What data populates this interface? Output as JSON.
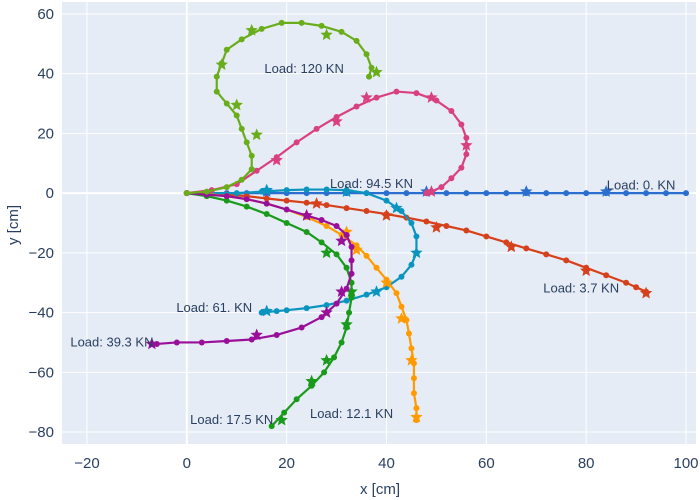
{
  "chart_data": {
    "type": "line",
    "xlabel": "x [cm]",
    "ylabel": "y [cm]",
    "xlim": [
      -25,
      102
    ],
    "ylim": [
      -84,
      64
    ],
    "x_ticks": [
      -20,
      0,
      20,
      40,
      60,
      80,
      100
    ],
    "y_ticks": [
      -80,
      -60,
      -40,
      -20,
      0,
      20,
      40,
      60
    ],
    "grid": true,
    "legend": "none",
    "background": "#e5ecf6",
    "series": [
      {
        "name": "Load: 0. KN",
        "color": "#2a6fd0",
        "points": [
          [
            0,
            0
          ],
          [
            4,
            0
          ],
          [
            8,
            0
          ],
          [
            12,
            0
          ],
          [
            16,
            0
          ],
          [
            20,
            0
          ],
          [
            24,
            0
          ],
          [
            28,
            0
          ],
          [
            32,
            0
          ],
          [
            36,
            0
          ],
          [
            40,
            0
          ],
          [
            44,
            0
          ],
          [
            48,
            0
          ],
          [
            52,
            0
          ],
          [
            56,
            0
          ],
          [
            60,
            0
          ],
          [
            64,
            0
          ],
          [
            68,
            0
          ],
          [
            72,
            0
          ],
          [
            76,
            0
          ],
          [
            80,
            0
          ],
          [
            84,
            0
          ],
          [
            88,
            0
          ],
          [
            92,
            0
          ],
          [
            96,
            0
          ],
          [
            100,
            0
          ]
        ],
        "stars": [
          [
            16,
            0.5
          ],
          [
            32,
            0.5
          ],
          [
            48,
            0.5
          ],
          [
            68,
            0.5
          ],
          [
            84,
            0.5
          ]
        ]
      },
      {
        "name": "Load: 3.7 KN",
        "color": "#d6411b",
        "points": [
          [
            0,
            0
          ],
          [
            4,
            -0.2
          ],
          [
            8,
            -0.5
          ],
          [
            12,
            -1
          ],
          [
            16,
            -1.8
          ],
          [
            20,
            -2.5
          ],
          [
            24,
            -3.2
          ],
          [
            28,
            -4
          ],
          [
            32,
            -5
          ],
          [
            36,
            -6
          ],
          [
            40,
            -7
          ],
          [
            44,
            -8.2
          ],
          [
            48,
            -9.5
          ],
          [
            52,
            -11
          ],
          [
            56,
            -12.5
          ],
          [
            60,
            -14.5
          ],
          [
            64,
            -16.5
          ],
          [
            68,
            -18.5
          ],
          [
            72,
            -20.5
          ],
          [
            76,
            -22.5
          ],
          [
            80,
            -25
          ],
          [
            84,
            -27.5
          ],
          [
            88,
            -30
          ],
          [
            90,
            -31.5
          ],
          [
            92,
            -33
          ]
        ],
        "stars": [
          [
            26,
            -3.5
          ],
          [
            40,
            -7.5
          ],
          [
            50,
            -11.5
          ],
          [
            65,
            -18
          ],
          [
            80,
            -26
          ],
          [
            92,
            -33.5
          ]
        ]
      },
      {
        "name": "Load: 94.5 KN",
        "color": "#0b94bf",
        "points": [
          [
            0,
            0
          ],
          [
            5,
            0
          ],
          [
            10,
            0
          ],
          [
            15,
            0.5
          ],
          [
            20,
            1
          ],
          [
            24,
            1.2
          ],
          [
            28,
            1.2
          ],
          [
            32,
            1
          ],
          [
            36,
            0
          ],
          [
            40,
            -2.5
          ],
          [
            43,
            -6
          ],
          [
            45,
            -10
          ],
          [
            46,
            -14.5
          ],
          [
            46,
            -20
          ],
          [
            45,
            -24
          ],
          [
            43,
            -28
          ],
          [
            40,
            -31.5
          ],
          [
            36,
            -34
          ],
          [
            32,
            -36
          ],
          [
            28,
            -37.5
          ],
          [
            24,
            -38.5
          ],
          [
            20,
            -39.2
          ],
          [
            18,
            -39.5
          ],
          [
            15,
            -40
          ]
        ],
        "stars": [
          [
            16,
            1
          ],
          [
            32,
            0.5
          ],
          [
            42,
            -5
          ],
          [
            46,
            -20
          ],
          [
            38,
            -33
          ],
          [
            16,
            -39.5
          ]
        ]
      },
      {
        "name": "Load: 12.1 KN",
        "color": "#ff9b00",
        "points": [
          [
            0,
            0
          ],
          [
            4,
            -0.3
          ],
          [
            8,
            -1
          ],
          [
            12,
            -2
          ],
          [
            16,
            -3.5
          ],
          [
            20,
            -5.5
          ],
          [
            24,
            -8
          ],
          [
            28,
            -11
          ],
          [
            31,
            -14
          ],
          [
            34,
            -17.5
          ],
          [
            36,
            -21
          ],
          [
            38,
            -25
          ],
          [
            40,
            -29
          ],
          [
            42,
            -33.5
          ],
          [
            43,
            -38
          ],
          [
            44,
            -42.5
          ],
          [
            44.5,
            -47
          ],
          [
            45,
            -52
          ],
          [
            45.5,
            -57
          ],
          [
            45.5,
            -62
          ],
          [
            45.5,
            -67
          ],
          [
            46,
            -72
          ],
          [
            46,
            -76
          ]
        ],
        "stars": [
          [
            24,
            -7.5
          ],
          [
            32,
            -13
          ],
          [
            34,
            -19
          ],
          [
            40,
            -30
          ],
          [
            43,
            -42
          ],
          [
            45,
            -56
          ],
          [
            46,
            -75
          ]
        ]
      },
      {
        "name": "Load: 17.5 KN",
        "color": "#1a9a1a",
        "points": [
          [
            0,
            0
          ],
          [
            4,
            -1
          ],
          [
            8,
            -2.5
          ],
          [
            12,
            -4.5
          ],
          [
            16,
            -7
          ],
          [
            20,
            -10
          ],
          [
            24,
            -13
          ],
          [
            27,
            -16.5
          ],
          [
            30,
            -20.5
          ],
          [
            32,
            -25
          ],
          [
            33,
            -30
          ],
          [
            33,
            -35
          ],
          [
            32.5,
            -40
          ],
          [
            32,
            -45
          ],
          [
            31,
            -50
          ],
          [
            29.5,
            -55
          ],
          [
            27.5,
            -60
          ],
          [
            25,
            -64.5
          ],
          [
            22,
            -69
          ],
          [
            19.5,
            -73.5
          ],
          [
            17,
            -78
          ]
        ],
        "stars": [
          [
            28,
            -20
          ],
          [
            33,
            -33
          ],
          [
            32,
            -44
          ],
          [
            28,
            -56
          ],
          [
            25,
            -63
          ],
          [
            19,
            -76
          ]
        ]
      },
      {
        "name": "Load: 39.3 KN",
        "color": "#9a0f9a",
        "points": [
          [
            0,
            0
          ],
          [
            4,
            -0.5
          ],
          [
            8,
            -1
          ],
          [
            12,
            -2
          ],
          [
            16,
            -3.5
          ],
          [
            20,
            -5.5
          ],
          [
            24,
            -7.5
          ],
          [
            27,
            -9
          ],
          [
            30,
            -11
          ],
          [
            32,
            -14
          ],
          [
            33,
            -18
          ],
          [
            33,
            -22.5
          ],
          [
            33,
            -27
          ],
          [
            32,
            -32
          ],
          [
            30,
            -37
          ],
          [
            27,
            -41.5
          ],
          [
            23,
            -45
          ],
          [
            18,
            -47.5
          ],
          [
            13,
            -49
          ],
          [
            8,
            -49.5
          ],
          [
            3,
            -50
          ],
          [
            -2,
            -50
          ],
          [
            -6,
            -50.5
          ],
          [
            -7,
            -50.5
          ]
        ],
        "stars": [
          [
            24,
            -7.5
          ],
          [
            31,
            -16
          ],
          [
            31,
            -33
          ],
          [
            28,
            -40
          ],
          [
            14,
            -47.5
          ],
          [
            -7,
            -50.5
          ]
        ]
      },
      {
        "name": "Load: 61. KN",
        "color": "#d94080",
        "points": [
          [
            0,
            0
          ],
          [
            5,
            1
          ],
          [
            10,
            3
          ],
          [
            14,
            7.5
          ],
          [
            18,
            12
          ],
          [
            22,
            17
          ],
          [
            26,
            21.5
          ],
          [
            30,
            25.5
          ],
          [
            34,
            29
          ],
          [
            38,
            32
          ],
          [
            42,
            34
          ],
          [
            46,
            33.5
          ],
          [
            50,
            31
          ],
          [
            53,
            27.5
          ],
          [
            55,
            23
          ],
          [
            56,
            18.5
          ],
          [
            56,
            13
          ],
          [
            55,
            8.5
          ],
          [
            53,
            5
          ],
          [
            51,
            2
          ],
          [
            49,
            0.5
          ],
          [
            48,
            0
          ]
        ],
        "stars": [
          [
            18,
            11
          ],
          [
            30,
            24
          ],
          [
            36,
            32
          ],
          [
            49,
            32
          ],
          [
            56,
            16
          ],
          [
            49,
            0.5
          ]
        ]
      },
      {
        "name": "Load: 120 KN",
        "color": "#6aad1a",
        "points": [
          [
            0,
            0
          ],
          [
            4,
            0.5
          ],
          [
            8,
            2
          ],
          [
            11,
            4.5
          ],
          [
            13,
            8
          ],
          [
            13,
            12.5
          ],
          [
            12,
            17
          ],
          [
            11,
            21.5
          ],
          [
            10,
            26
          ],
          [
            8,
            30
          ],
          [
            6,
            34
          ],
          [
            6,
            39
          ],
          [
            7,
            43.5
          ],
          [
            8,
            48
          ],
          [
            11,
            51.5
          ],
          [
            15,
            55
          ],
          [
            19,
            57
          ],
          [
            23,
            57
          ],
          [
            27,
            56
          ],
          [
            31,
            54
          ],
          [
            34,
            51
          ],
          [
            36,
            46.5
          ],
          [
            37,
            42
          ],
          [
            36.5,
            39
          ]
        ],
        "stars": [
          [
            14,
            19.5
          ],
          [
            10,
            29.5
          ],
          [
            7,
            43
          ],
          [
            13,
            54.5
          ],
          [
            28,
            53
          ],
          [
            38,
            40.5
          ]
        ]
      }
    ],
    "annotations": [
      {
        "text": "Load: 0. KN",
        "x": 91,
        "y": 2.5
      },
      {
        "text": "Load: 3.7 KN",
        "x": 79,
        "y": -32
      },
      {
        "text": "Load: 94.5 KN",
        "x": 37,
        "y": 3
      },
      {
        "text": "Load: 12.1 KN",
        "x": 33,
        "y": -74
      },
      {
        "text": "Load: 17.5 KN",
        "x": 9,
        "y": -76
      },
      {
        "text": "Load: 39.3 KN",
        "x": -15,
        "y": -50
      },
      {
        "text": "Load: 61. KN",
        "x": 5.5,
        "y": -38.5
      },
      {
        "text": "Load: 120 KN",
        "x": 23.5,
        "y": 41.5
      }
    ]
  }
}
